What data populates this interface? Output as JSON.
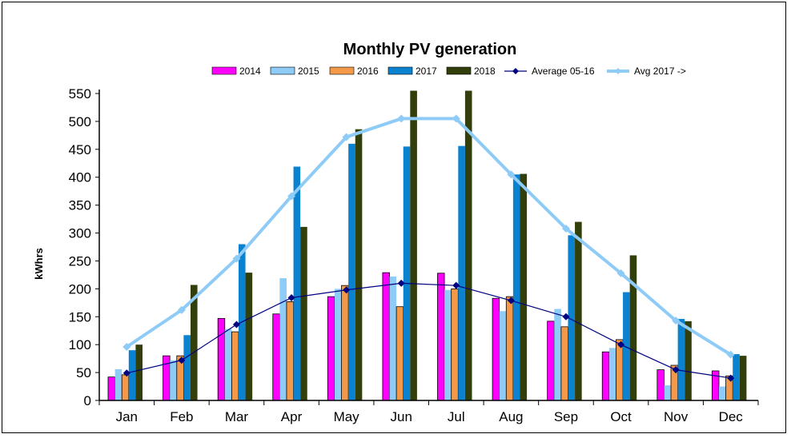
{
  "chart_data": {
    "type": "bar",
    "title": "Monthly PV generation",
    "xlabel": "",
    "ylabel": "kWhrs",
    "ylim": [
      0,
      550
    ],
    "yticks": [
      0,
      50,
      100,
      150,
      200,
      250,
      300,
      350,
      400,
      450,
      500,
      550
    ],
    "grid": false,
    "legend": "top",
    "categories": [
      "Jan",
      "Feb",
      "Mar",
      "Apr",
      "May",
      "Jun",
      "Jul",
      "Aug",
      "Sep",
      "Oct",
      "Nov",
      "Dec"
    ],
    "series": [
      {
        "name": "2014",
        "type": "bar",
        "color": "#ff00ff",
        "values": [
          42,
          80,
          147,
          155,
          186,
          229,
          228,
          183,
          142,
          87,
          55,
          53
        ]
      },
      {
        "name": "2015",
        "type": "bar",
        "color": "#8ecbf7",
        "values": [
          56,
          72,
          128,
          219,
          200,
          222,
          198,
          160,
          164,
          94,
          27,
          25
        ]
      },
      {
        "name": "2016",
        "type": "bar",
        "color": "#f4994a",
        "values": [
          46,
          80,
          123,
          177,
          206,
          168,
          200,
          186,
          132,
          109,
          63,
          44
        ]
      },
      {
        "name": "2017",
        "type": "bar",
        "color": "#0a82d0",
        "values": [
          90,
          117,
          280,
          419,
          460,
          455,
          456,
          405,
          296,
          194,
          146,
          83
        ]
      },
      {
        "name": "2018",
        "type": "bar",
        "color": "#333f0a",
        "values": [
          100,
          207,
          229,
          311,
          486,
          555,
          555,
          406,
          320,
          260,
          142,
          80
        ]
      },
      {
        "name": "Average 05-16",
        "type": "line",
        "color": "#000080",
        "values": [
          49,
          72,
          136,
          184,
          198,
          210,
          206,
          179,
          150,
          100,
          55,
          40
        ]
      },
      {
        "name": "Avg 2017 ->",
        "type": "line",
        "color": "#8ecbf7",
        "values": [
          96,
          162,
          254,
          366,
          472,
          505,
          505,
          405,
          308,
          228,
          143,
          82
        ]
      }
    ]
  }
}
